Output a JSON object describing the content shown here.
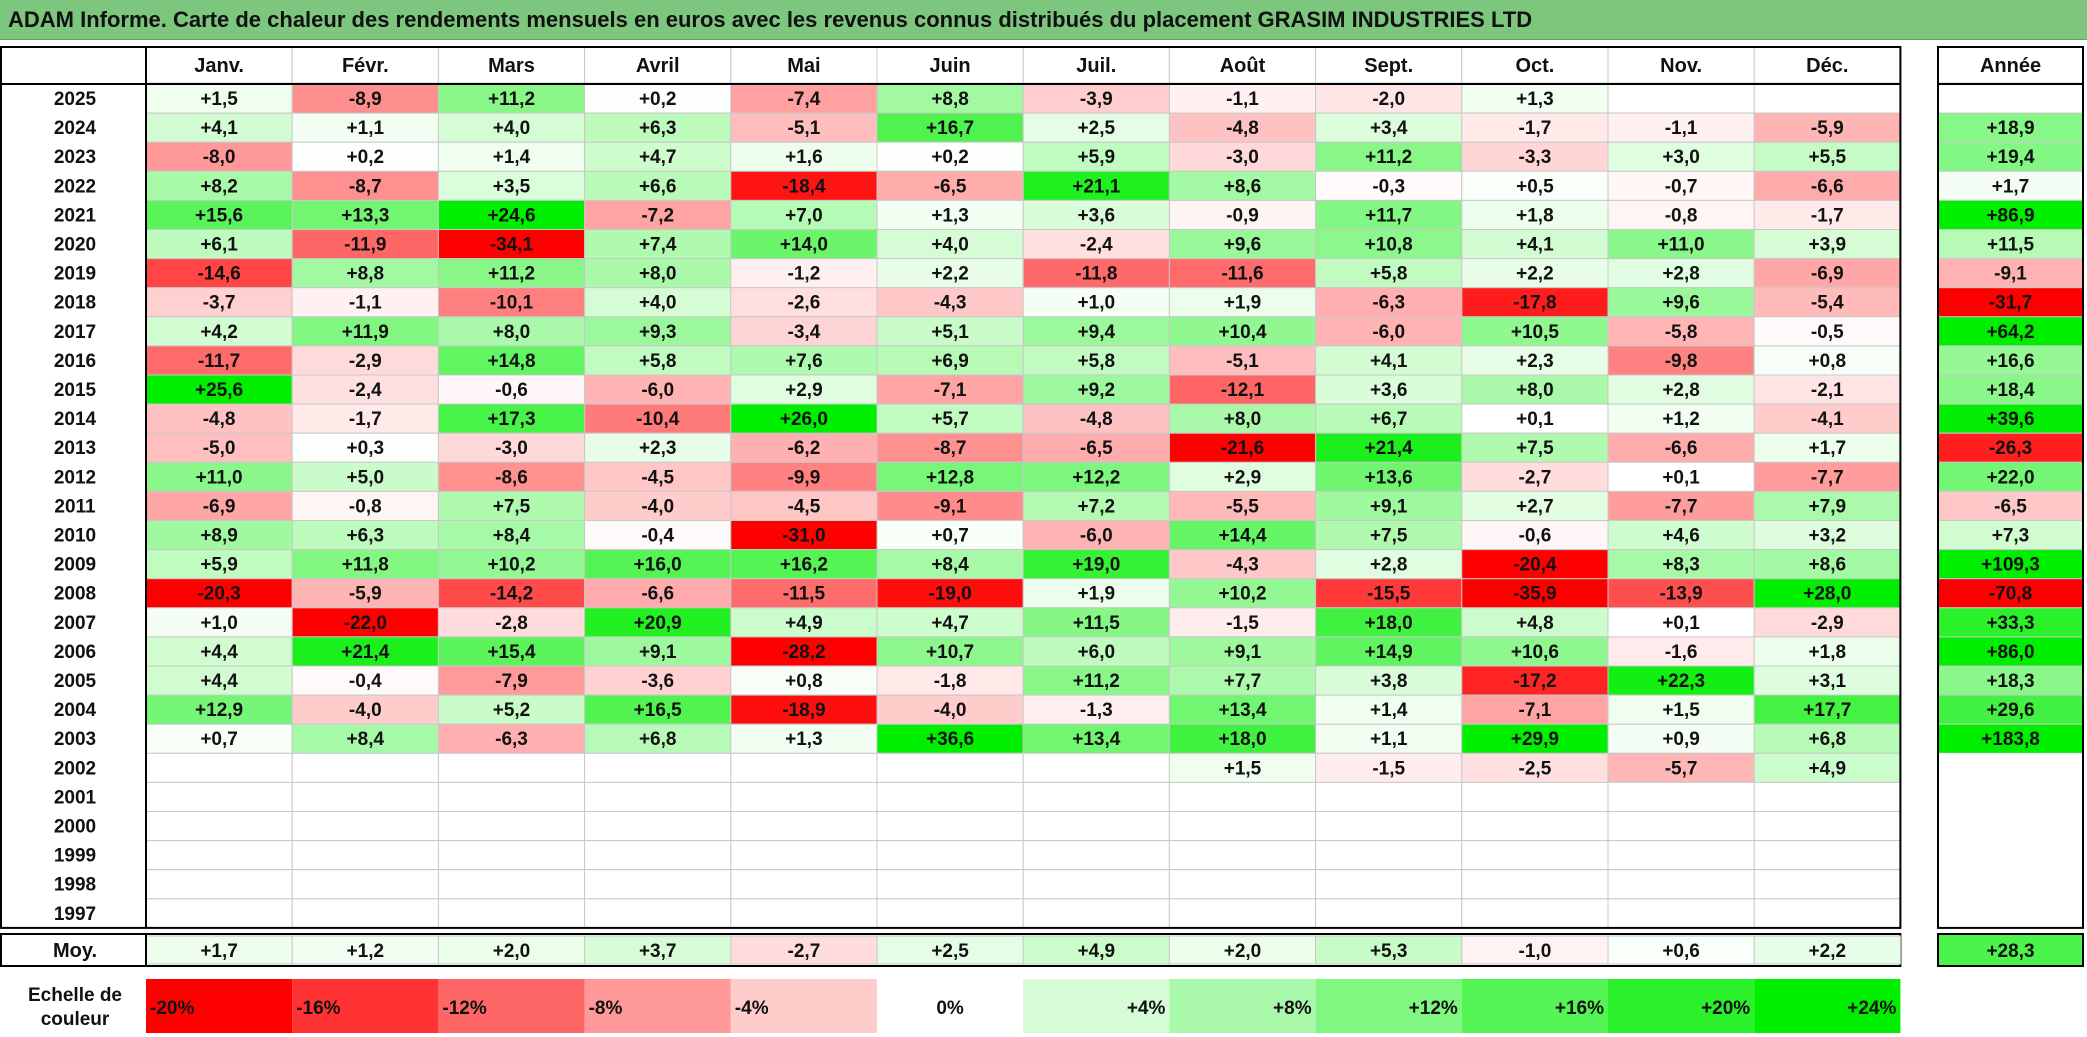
{
  "title": "ADAM Informe. Carte de chaleur des rendements mensuels en euros avec les revenus connus distribués du placement GRASIM INDUSTRIES LTD",
  "chart_data": {
    "type": "heatmap",
    "months": [
      "Janv.",
      "Févr.",
      "Mars",
      "Avril",
      "Mai",
      "Juin",
      "Juil.",
      "Août",
      "Sept.",
      "Oct.",
      "Nov.",
      "Déc."
    ],
    "year_header": "Année",
    "rows": [
      {
        "year": "2025",
        "values": [
          "+1,5",
          "-8,9",
          "+11,2",
          "+0,2",
          "-7,4",
          "+8,8",
          "-3,9",
          "-1,1",
          "-2,0",
          "+1,3",
          "",
          ""
        ],
        "annual": ""
      },
      {
        "year": "2024",
        "values": [
          "+4,1",
          "+1,1",
          "+4,0",
          "+6,3",
          "-5,1",
          "+16,7",
          "+2,5",
          "-4,8",
          "+3,4",
          "-1,7",
          "-1,1",
          "-5,9"
        ],
        "annual": "+18,9"
      },
      {
        "year": "2023",
        "values": [
          "-8,0",
          "+0,2",
          "+1,4",
          "+4,7",
          "+1,6",
          "+0,2",
          "+5,9",
          "-3,0",
          "+11,2",
          "-3,3",
          "+3,0",
          "+5,5"
        ],
        "annual": "+19,4"
      },
      {
        "year": "2022",
        "values": [
          "+8,2",
          "-8,7",
          "+3,5",
          "+6,6",
          "-18,4",
          "-6,5",
          "+21,1",
          "+8,6",
          "-0,3",
          "+0,5",
          "-0,7",
          "-6,6"
        ],
        "annual": "+1,7"
      },
      {
        "year": "2021",
        "values": [
          "+15,6",
          "+13,3",
          "+24,6",
          "-7,2",
          "+7,0",
          "+1,3",
          "+3,6",
          "-0,9",
          "+11,7",
          "+1,8",
          "-0,8",
          "-1,7"
        ],
        "annual": "+86,9"
      },
      {
        "year": "2020",
        "values": [
          "+6,1",
          "-11,9",
          "-34,1",
          "+7,4",
          "+14,0",
          "+4,0",
          "-2,4",
          "+9,6",
          "+10,8",
          "+4,1",
          "+11,0",
          "+3,9"
        ],
        "annual": "+11,5"
      },
      {
        "year": "2019",
        "values": [
          "-14,6",
          "+8,8",
          "+11,2",
          "+8,0",
          "-1,2",
          "+2,2",
          "-11,8",
          "-11,6",
          "+5,8",
          "+2,2",
          "+2,8",
          "-6,9"
        ],
        "annual": "-9,1"
      },
      {
        "year": "2018",
        "values": [
          "-3,7",
          "-1,1",
          "-10,1",
          "+4,0",
          "-2,6",
          "-4,3",
          "+1,0",
          "+1,9",
          "-6,3",
          "-17,8",
          "+9,6",
          "-5,4"
        ],
        "annual": "-31,7"
      },
      {
        "year": "2017",
        "values": [
          "+4,2",
          "+11,9",
          "+8,0",
          "+9,3",
          "-3,4",
          "+5,1",
          "+9,4",
          "+10,4",
          "-6,0",
          "+10,5",
          "-5,8",
          "-0,5"
        ],
        "annual": "+64,2"
      },
      {
        "year": "2016",
        "values": [
          "-11,7",
          "-2,9",
          "+14,8",
          "+5,8",
          "+7,6",
          "+6,9",
          "+5,8",
          "-5,1",
          "+4,1",
          "+2,3",
          "-9,8",
          "+0,8"
        ],
        "annual": "+16,6"
      },
      {
        "year": "2015",
        "values": [
          "+25,6",
          "-2,4",
          "-0,6",
          "-6,0",
          "+2,9",
          "-7,1",
          "+9,2",
          "-12,1",
          "+3,6",
          "+8,0",
          "+2,8",
          "-2,1"
        ],
        "annual": "+18,4"
      },
      {
        "year": "2014",
        "values": [
          "-4,8",
          "-1,7",
          "+17,3",
          "-10,4",
          "+26,0",
          "+5,7",
          "-4,8",
          "+8,0",
          "+6,7",
          "+0,1",
          "+1,2",
          "-4,1"
        ],
        "annual": "+39,6"
      },
      {
        "year": "2013",
        "values": [
          "-5,0",
          "+0,3",
          "-3,0",
          "+2,3",
          "-6,2",
          "-8,7",
          "-6,5",
          "-21,6",
          "+21,4",
          "+7,5",
          "-6,6",
          "+1,7"
        ],
        "annual": "-26,3"
      },
      {
        "year": "2012",
        "values": [
          "+11,0",
          "+5,0",
          "-8,6",
          "-4,5",
          "-9,9",
          "+12,8",
          "+12,2",
          "+2,9",
          "+13,6",
          "-2,7",
          "+0,1",
          "-7,7"
        ],
        "annual": "+22,0"
      },
      {
        "year": "2011",
        "values": [
          "-6,9",
          "-0,8",
          "+7,5",
          "-4,0",
          "-4,5",
          "-9,1",
          "+7,2",
          "-5,5",
          "+9,1",
          "+2,7",
          "-7,7",
          "+7,9"
        ],
        "annual": "-6,5"
      },
      {
        "year": "2010",
        "values": [
          "+8,9",
          "+6,3",
          "+8,4",
          "-0,4",
          "-31,0",
          "+0,7",
          "-6,0",
          "+14,4",
          "+7,5",
          "-0,6",
          "+4,6",
          "+3,2"
        ],
        "annual": "+7,3"
      },
      {
        "year": "2009",
        "values": [
          "+5,9",
          "+11,8",
          "+10,2",
          "+16,0",
          "+16,2",
          "+8,4",
          "+19,0",
          "-4,3",
          "+2,8",
          "-20,4",
          "+8,3",
          "+8,6"
        ],
        "annual": "+109,3"
      },
      {
        "year": "2008",
        "values": [
          "-20,3",
          "-5,9",
          "-14,2",
          "-6,6",
          "-11,5",
          "-19,0",
          "+1,9",
          "+10,2",
          "-15,5",
          "-35,9",
          "-13,9",
          "+28,0"
        ],
        "annual": "-70,8"
      },
      {
        "year": "2007",
        "values": [
          "+1,0",
          "-22,0",
          "-2,8",
          "+20,9",
          "+4,9",
          "+4,7",
          "+11,5",
          "-1,5",
          "+18,0",
          "+4,8",
          "+0,1",
          "-2,9"
        ],
        "annual": "+33,3"
      },
      {
        "year": "2006",
        "values": [
          "+4,4",
          "+21,4",
          "+15,4",
          "+9,1",
          "-28,2",
          "+10,7",
          "+6,0",
          "+9,1",
          "+14,9",
          "+10,6",
          "-1,6",
          "+1,8"
        ],
        "annual": "+86,0"
      },
      {
        "year": "2005",
        "values": [
          "+4,4",
          "-0,4",
          "-7,9",
          "-3,6",
          "+0,8",
          "-1,8",
          "+11,2",
          "+7,7",
          "+3,8",
          "-17,2",
          "+22,3",
          "+3,1"
        ],
        "annual": "+18,3"
      },
      {
        "year": "2004",
        "values": [
          "+12,9",
          "-4,0",
          "+5,2",
          "+16,5",
          "-18,9",
          "-4,0",
          "-1,3",
          "+13,4",
          "+1,4",
          "-7,1",
          "+1,5",
          "+17,7"
        ],
        "annual": "+29,6"
      },
      {
        "year": "2003",
        "values": [
          "+0,7",
          "+8,4",
          "-6,3",
          "+6,8",
          "+1,3",
          "+36,6",
          "+13,4",
          "+18,0",
          "+1,1",
          "+29,9",
          "+0,9",
          "+6,8"
        ],
        "annual": "+183,8"
      },
      {
        "year": "2002",
        "values": [
          "",
          "",
          "",
          "",
          "",
          "",
          "",
          "+1,5",
          "-1,5",
          "-2,5",
          "-5,7",
          "+4,9"
        ],
        "annual": ""
      },
      {
        "year": "2001",
        "values": [
          "",
          "",
          "",
          "",
          "",
          "",
          "",
          "",
          "",
          "",
          "",
          ""
        ],
        "annual": ""
      },
      {
        "year": "2000",
        "values": [
          "",
          "",
          "",
          "",
          "",
          "",
          "",
          "",
          "",
          "",
          "",
          ""
        ],
        "annual": ""
      },
      {
        "year": "1999",
        "values": [
          "",
          "",
          "",
          "",
          "",
          "",
          "",
          "",
          "",
          "",
          "",
          ""
        ],
        "annual": ""
      },
      {
        "year": "1998",
        "values": [
          "",
          "",
          "",
          "",
          "",
          "",
          "",
          "",
          "",
          "",
          "",
          ""
        ],
        "annual": ""
      },
      {
        "year": "1997",
        "values": [
          "",
          "",
          "",
          "",
          "",
          "",
          "",
          "",
          "",
          "",
          "",
          ""
        ],
        "annual": ""
      }
    ],
    "average": {
      "label": "Moy.",
      "values": [
        "+1,7",
        "+1,2",
        "+2,0",
        "+3,7",
        "-2,7",
        "+2,5",
        "+4,9",
        "+2,0",
        "+5,3",
        "-1,0",
        "+0,6",
        "+2,2"
      ],
      "annual": "+28,3"
    },
    "scale": {
      "label_line1": "Echelle de",
      "label_line2": "couleur",
      "items": [
        "-20%",
        "-16%",
        "-12%",
        "-8%",
        "-4%",
        "0%",
        "+4%",
        "+8%",
        "+12%",
        "+16%",
        "+20%",
        "+24%"
      ],
      "values": [
        -20,
        -16,
        -12,
        -8,
        -4,
        0,
        4,
        8,
        12,
        16,
        20,
        24
      ]
    },
    "colors": {
      "negative_max": "#ff0000",
      "zero": "#ffffff",
      "positive_max": "#00ee00",
      "title_bg": "#7dc67e"
    }
  }
}
